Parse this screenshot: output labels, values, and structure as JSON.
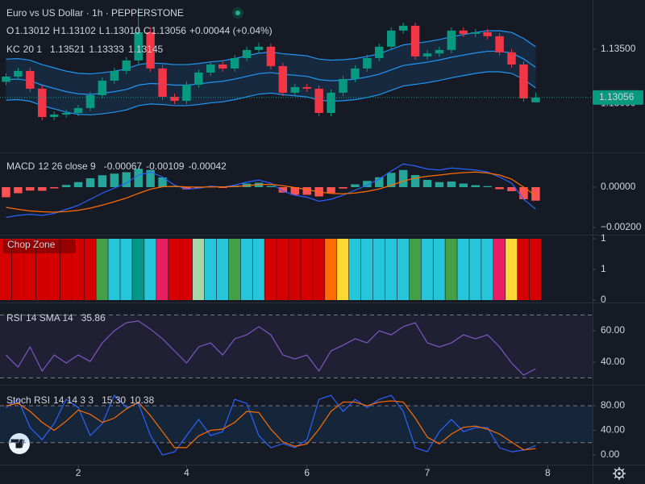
{
  "chart_data": [
    {
      "type": "candlestick",
      "title": "Euro vs US Dollar · 1h · PEPPERSTONE",
      "ohlc_labels": [
        "O",
        "H",
        "L",
        "C"
      ],
      "change": "+0.00044 (+0.04%)",
      "open": [
        1.132,
        1.13248,
        1.133,
        1.13137,
        1.12878,
        1.129,
        1.12915,
        1.1296,
        1.13078,
        1.13211,
        1.133,
        1.13396,
        1.13655,
        1.13322,
        1.13063,
        1.13026,
        1.13174,
        1.13285,
        1.13359,
        1.13322,
        1.13418,
        1.13492,
        1.13522,
        1.13344,
        1.131,
        1.13152,
        1.13137,
        1.12915,
        1.131,
        1.13226,
        1.13322,
        1.13418,
        1.13522,
        1.1367,
        1.13714,
        1.13433,
        1.1346,
        1.13492,
        1.1367,
        1.1364,
        1.13655,
        1.13618,
        1.1347,
        1.13359,
        1.13012
      ],
      "high": [
        1.13278,
        1.1333,
        1.1333,
        1.13167,
        1.1293,
        1.12945,
        1.1299,
        1.13108,
        1.13241,
        1.1333,
        1.13426,
        1.1388,
        1.137,
        1.13352,
        1.13093,
        1.13204,
        1.13315,
        1.13389,
        1.13389,
        1.13448,
        1.13522,
        1.1356,
        1.13552,
        1.13374,
        1.13182,
        1.13182,
        1.13167,
        1.1313,
        1.13256,
        1.13352,
        1.13448,
        1.13552,
        1.137,
        1.13744,
        1.13744,
        1.1349,
        1.13522,
        1.137,
        1.137,
        1.13685,
        1.13685,
        1.13648,
        1.135,
        1.13389,
        1.13102
      ],
      "low": [
        1.1317,
        1.13218,
        1.13107,
        1.12848,
        1.12848,
        1.1287,
        1.12885,
        1.1293,
        1.13048,
        1.13181,
        1.1327,
        1.13366,
        1.13292,
        1.13033,
        1.12996,
        1.12996,
        1.13144,
        1.13255,
        1.13292,
        1.13292,
        1.13388,
        1.13462,
        1.13314,
        1.1307,
        1.1307,
        1.13107,
        1.12885,
        1.12885,
        1.1307,
        1.13196,
        1.13292,
        1.13388,
        1.13492,
        1.1364,
        1.13403,
        1.13403,
        1.1343,
        1.13462,
        1.1361,
        1.1361,
        1.13588,
        1.1344,
        1.13329,
        1.13018,
        1.1301
      ],
      "low_labels": [
        null,
        null,
        null,
        null,
        null,
        null,
        null,
        null,
        null,
        null,
        null,
        null,
        null,
        null,
        null,
        null,
        null,
        null,
        null,
        null,
        null,
        null,
        null,
        null,
        null,
        null,
        null,
        null,
        null,
        null,
        null,
        null,
        null,
        null,
        null,
        null,
        null,
        null,
        null,
        null,
        null,
        null,
        null,
        null,
        "1.13010"
      ],
      "close": [
        1.13248,
        1.133,
        1.13137,
        1.12878,
        1.129,
        1.12915,
        1.1296,
        1.13078,
        1.13211,
        1.133,
        1.13396,
        1.13655,
        1.13322,
        1.13063,
        1.13026,
        1.13174,
        1.13285,
        1.13359,
        1.13322,
        1.13418,
        1.13492,
        1.13522,
        1.13344,
        1.131,
        1.13152,
        1.13137,
        1.12915,
        1.131,
        1.13226,
        1.13322,
        1.13418,
        1.13522,
        1.1367,
        1.13714,
        1.13433,
        1.1346,
        1.13492,
        1.1367,
        1.1364,
        1.13655,
        1.13618,
        1.1347,
        1.13359,
        1.13048,
        1.13056
      ],
      "up_color": "#089981",
      "down_color": "#f23645",
      "ylim": [
        1.1256,
        1.1395
      ],
      "yticks": [
        {
          "value": 1.135,
          "label": "1.13500"
        },
        {
          "value": 1.13,
          "label": "1.13000"
        }
      ],
      "xticks": [
        {
          "value": 6,
          "label": "2"
        },
        {
          "value": 15,
          "label": "4"
        },
        {
          "value": 25,
          "label": "6"
        },
        {
          "value": 35,
          "label": "7"
        },
        {
          "value": 45,
          "label": "8"
        }
      ],
      "overlay": {
        "name": "KC",
        "params": "20 1",
        "color": "#2196f3",
        "fill": "rgba(33,150,243,0.13)",
        "series": [
          {
            "values": [
              1.13408,
              1.13413,
              1.13398,
              1.13358,
              1.13328,
              1.13298,
              1.13278,
              1.13273,
              1.13283,
              1.13298,
              1.13318,
              1.13358,
              1.13373,
              1.13368,
              1.13358,
              1.13358,
              1.13368,
              1.13383,
              1.13393,
              1.13413,
              1.13438,
              1.13463,
              1.13473,
              1.13458,
              1.13448,
              1.13438,
              1.13408,
              1.13398,
              1.13403,
              1.13413,
              1.13433,
              1.13458,
              1.13498,
              1.13538,
              1.13553,
              1.13568,
              1.13588,
              1.13613,
              1.13633,
              1.13653,
              1.13668,
              1.13668,
              1.13653,
              1.13598,
              1.13521
            ]
          },
          {
            "values": [
              1.1322,
              1.13225,
              1.1321,
              1.1317,
              1.1314,
              1.1311,
              1.1309,
              1.13085,
              1.13095,
              1.1311,
              1.1313,
              1.1317,
              1.13185,
              1.1318,
              1.1317,
              1.1317,
              1.1318,
              1.13195,
              1.13205,
              1.13225,
              1.1325,
              1.13275,
              1.13285,
              1.1327,
              1.1326,
              1.1325,
              1.1322,
              1.1321,
              1.13215,
              1.13225,
              1.13245,
              1.1327,
              1.1331,
              1.1335,
              1.13365,
              1.1338,
              1.134,
              1.13425,
              1.13445,
              1.13465,
              1.1348,
              1.1348,
              1.13465,
              1.1341,
              1.13333
            ]
          },
          {
            "values": [
              1.13032,
              1.13037,
              1.13022,
              1.12982,
              1.12952,
              1.12922,
              1.12902,
              1.12897,
              1.12907,
              1.12922,
              1.12942,
              1.12982,
              1.12997,
              1.12992,
              1.12982,
              1.12982,
              1.12992,
              1.13007,
              1.13017,
              1.13037,
              1.13062,
              1.13087,
              1.13097,
              1.13082,
              1.13072,
              1.13062,
              1.13032,
              1.13022,
              1.13027,
              1.13037,
              1.13057,
              1.13082,
              1.13122,
              1.13162,
              1.13177,
              1.13192,
              1.13212,
              1.13237,
              1.13257,
              1.13277,
              1.13292,
              1.13292,
              1.13277,
              1.13222,
              1.13145
            ]
          }
        ]
      }
    },
    {
      "type": "macd",
      "title": "MACD",
      "params": "12 26 close 9",
      "histogram": {
        "colors": [
          "#26a69a",
          "#ff5252"
        ],
        "values": [
          -0.0005,
          -0.0003,
          -0.00017,
          -0.00018,
          -6e-05,
          0.00011,
          0.00025,
          0.00044,
          0.00059,
          0.00067,
          0.00074,
          0.00091,
          0.00085,
          0.00048,
          6e-05,
          -0.00011,
          -5e-05,
          4e-05,
          -1e-05,
          7e-05,
          0.00018,
          0.00022,
          6e-05,
          -0.00027,
          -0.00038,
          -0.00038,
          -0.00046,
          -0.00029,
          -7e-05,
          0.00014,
          0.00031,
          0.00049,
          0.00071,
          0.00085,
          0.0006,
          0.00036,
          0.00025,
          0.00028,
          0.00018,
          0.0001,
          5e-05,
          -0.0001,
          -0.0002,
          -0.0006,
          -0.00067
        ]
      },
      "series": [
        {
          "color": "#2962ff",
          "values": [
            -0.0015,
            -0.0014,
            -0.00135,
            -0.0014,
            -0.0013,
            -0.0011,
            -0.0009,
            -0.0006,
            -0.0003,
            -5e-05,
            0.0002,
            0.0006,
            0.00075,
            0.0005,
            0.0001,
            -0.0001,
            -5e-05,
            5e-05,
            0.0,
            0.0001,
            0.00025,
            0.00035,
            0.0002,
            -0.0002,
            -0.0004,
            -0.0005,
            -0.0007,
            -0.0006,
            -0.0004,
            -0.00015,
            0.0001,
            0.0004,
            0.0008,
            0.00115,
            0.00105,
            0.0009,
            0.00085,
            0.00095,
            0.0009,
            0.00085,
            0.00075,
            0.0005,
            0.0002,
            -0.0006,
            -0.00109
          ]
        },
        {
          "color": "#ff6d00",
          "values": [
            -0.001,
            -0.0011,
            -0.00118,
            -0.00122,
            -0.00124,
            -0.00121,
            -0.00115,
            -0.00104,
            -0.00089,
            -0.00072,
            -0.00054,
            -0.00031,
            -0.0001,
            2e-05,
            4e-05,
            1e-05,
            0.0,
            1e-05,
            1e-05,
            3e-05,
            7e-05,
            0.00013,
            0.00014,
            7e-05,
            -2e-05,
            -0.00012,
            -0.00024,
            -0.00031,
            -0.00033,
            -0.00029,
            -0.00021,
            -9e-05,
            9e-05,
            0.0003,
            0.00045,
            0.00054,
            0.0006,
            0.00067,
            0.00072,
            0.00075,
            0.0007,
            0.0006,
            0.0004,
            0.0,
            -0.00042
          ]
        }
      ],
      "ylim": [
        -0.00224,
        0.00168
      ],
      "yticks": [
        {
          "value": 0,
          "label": "0.00000"
        },
        {
          "value": -0.002,
          "label": "−0.00200"
        }
      ]
    },
    {
      "type": "bar",
      "title": "Chop Zone",
      "values": [
        1,
        1,
        1,
        1,
        1,
        1,
        1,
        1,
        1,
        1,
        1,
        1,
        1,
        1,
        1,
        1,
        1,
        1,
        1,
        1,
        1,
        1,
        1,
        1,
        1,
        1,
        1,
        1,
        1,
        1,
        1,
        1,
        1,
        1,
        1,
        1,
        1,
        1,
        1,
        1,
        1,
        1,
        1,
        1,
        1
      ],
      "colors": [
        "#d50000",
        "#d50000",
        "#d50000",
        "#d50000",
        "#d50000",
        "#d50000",
        "#d50000",
        "#d50000",
        "#43a047",
        "#26c6da",
        "#26c6da",
        "#009688",
        "#26c6da",
        "#e91e63",
        "#d50000",
        "#d50000",
        "#a5d6a7",
        "#26c6da",
        "#26c6da",
        "#43a047",
        "#26c6da",
        "#26c6da",
        "#d50000",
        "#d50000",
        "#d50000",
        "#d50000",
        "#d50000",
        "#ff6d00",
        "#fdd835",
        "#26c6da",
        "#26c6da",
        "#26c6da",
        "#26c6da",
        "#26c6da",
        "#43a047",
        "#26c6da",
        "#26c6da",
        "#43a047",
        "#26c6da",
        "#26c6da",
        "#26c6da",
        "#e91e63",
        "#fdd835",
        "#d50000",
        "#d50000"
      ],
      "ylim": [
        0,
        1
      ],
      "yticks": [
        1,
        {
          "value": 0.5,
          "label": "1"
        },
        0
      ]
    },
    {
      "type": "line",
      "title": "RSI",
      "params": "14 SMA 14",
      "series": [
        {
          "color": "#7e57c2",
          "values": [
            44.6,
            36.9,
            49.7,
            34.4,
            44.6,
            39.5,
            44.6,
            40.5,
            52.3,
            60.0,
            65.1,
            66.2,
            61.0,
            54.9,
            47.2,
            39.5,
            49.7,
            52.3,
            44.6,
            54.9,
            57.4,
            62.6,
            57.4,
            44.6,
            42.1,
            44.6,
            34.4,
            47.2,
            50.8,
            54.9,
            52.3,
            60.0,
            57.4,
            62.6,
            65.1,
            52.3,
            49.7,
            52.3,
            57.4,
            54.9,
            57.4,
            49.7,
            39.5,
            31.8,
            35.86
          ]
        }
      ],
      "bands": [
        70,
        30
      ],
      "band_fill": "rgba(126,87,194,0.1)",
      "ylim": [
        26.7,
        76.4
      ],
      "yticks": [
        {
          "value": 60,
          "label": "60.00"
        },
        {
          "value": 40,
          "label": "40.00"
        }
      ]
    },
    {
      "type": "line",
      "title": "Stoch RSI",
      "params": "14 14 3 3",
      "series": [
        {
          "color": "#2962ff",
          "values": [
            77.3,
            90.5,
            44.6,
            24.9,
            51.1,
            90.5,
            77.3,
            31.5,
            51.1,
            97.0,
            77.3,
            83.9,
            31.5,
            0,
            5.2,
            31.5,
            57.7,
            31.5,
            38.0,
            90.5,
            83.9,
            31.5,
            11.8,
            18.4,
            11.8,
            24.9,
            90.5,
            97.0,
            70.8,
            90.5,
            77.3,
            90.5,
            97.0,
            70.8,
            11.8,
            5.2,
            38.0,
            57.7,
            38.0,
            44.6,
            44.6,
            11.8,
            5.2,
            7.9,
            15.3
          ],
          "value_labels": [
            null,
            null,
            null,
            null,
            null,
            null,
            null,
            null,
            null,
            null,
            null,
            null,
            null,
            null,
            null,
            null,
            null,
            null,
            null,
            null,
            null,
            null,
            null,
            null,
            null,
            null,
            null,
            null,
            null,
            null,
            null,
            null,
            null,
            null,
            null,
            null,
            null,
            null,
            null,
            null,
            null,
            null,
            null,
            null,
            "15.30"
          ]
        },
        {
          "color": "#ff6d00",
          "values": [
            80,
            84,
            71,
            53,
            40,
            55,
            73,
            66,
            53,
            60,
            75,
            86,
            64,
            38,
            12,
            12,
            31,
            40,
            42,
            53,
            71,
            69,
            42,
            21,
            14,
            18,
            42,
            71,
            86,
            86,
            80,
            86,
            88,
            86,
            60,
            29,
            18,
            34,
            45,
            47,
            42,
            34,
            21,
            8.3,
            10.38
          ]
        }
      ],
      "bands": [
        80,
        20
      ],
      "band_fill": "rgba(33,150,243,0.1)",
      "ylim": [
        -14.4,
        110.2
      ],
      "yticks": [
        {
          "value": 80,
          "label": "80.00"
        },
        {
          "value": 40,
          "label": "40.00"
        },
        {
          "value": 0,
          "label": "0.00"
        }
      ]
    }
  ]
}
